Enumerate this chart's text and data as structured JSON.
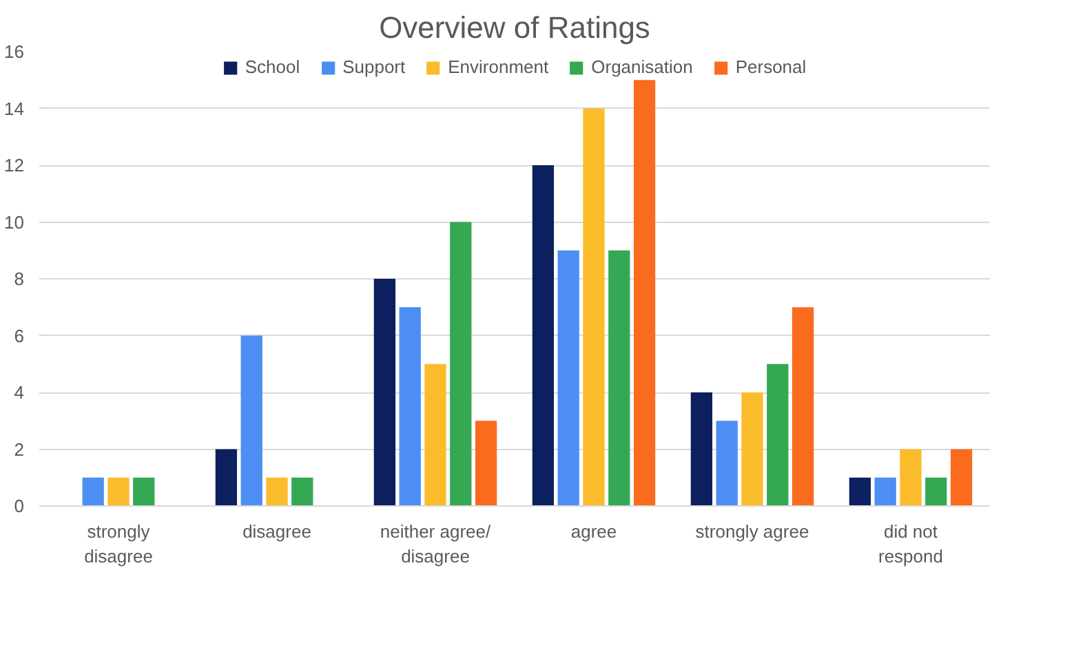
{
  "chart_data": {
    "type": "bar",
    "title": "Overview of Ratings",
    "categories": [
      "strongly disagree",
      "disagree",
      "neither agree/ disagree",
      "agree",
      "strongly agree",
      "did not respond"
    ],
    "series": [
      {
        "name": "School",
        "color": "#0c1f5e",
        "values": [
          0,
          2,
          8,
          12,
          4,
          1
        ]
      },
      {
        "name": "Support",
        "color": "#4d8ef2",
        "values": [
          1,
          6,
          7,
          9,
          3,
          1
        ]
      },
      {
        "name": "Environment",
        "color": "#fbbc2c",
        "values": [
          1,
          1,
          5,
          14,
          4,
          2
        ]
      },
      {
        "name": "Organisation",
        "color": "#34a853",
        "values": [
          1,
          1,
          10,
          9,
          5,
          1
        ]
      },
      {
        "name": "Personal",
        "color": "#fa6b1e",
        "values": [
          0,
          0,
          3,
          15,
          7,
          2
        ]
      }
    ],
    "ylim": [
      0,
      16
    ],
    "yticks": [
      0,
      2,
      4,
      6,
      8,
      10,
      12,
      14,
      16
    ],
    "grid": "y",
    "legend": "top"
  }
}
